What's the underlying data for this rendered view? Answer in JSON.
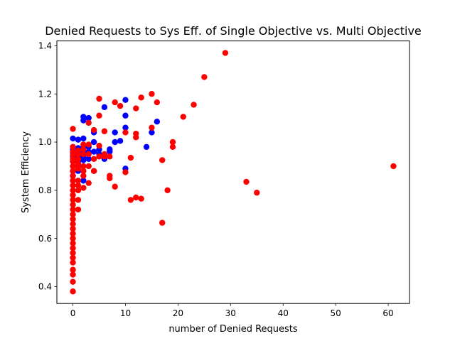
{
  "chart_data": {
    "type": "scatter",
    "title": "Denied Requests to Sys Eff. of Single Objective vs. Multi Objective",
    "xlabel": "number of Denied Requests",
    "ylabel": "System Efficiency",
    "xlim": [
      -3.05,
      64.05
    ],
    "ylim": [
      0.33,
      1.42
    ],
    "xticks": [
      0,
      10,
      20,
      30,
      40,
      50,
      60
    ],
    "yticks": [
      0.4,
      0.6,
      0.8,
      1.0,
      1.2,
      1.4
    ],
    "xtick_labels": [
      "0",
      "10",
      "20",
      "30",
      "40",
      "50",
      "60"
    ],
    "ytick_labels": [
      "0.4",
      "0.6",
      "0.8",
      "1.0",
      "1.2",
      "1.4"
    ],
    "grid": false,
    "legend": "none",
    "series": [
      {
        "color": "#0000ff",
        "points": [
          [
            0,
            1.015
          ],
          [
            0,
            0.98
          ],
          [
            0,
            0.97
          ],
          [
            0,
            0.955
          ],
          [
            0,
            0.94
          ],
          [
            0,
            0.92
          ],
          [
            0,
            0.9
          ],
          [
            0,
            0.88
          ],
          [
            0,
            0.86
          ],
          [
            0,
            0.84
          ],
          [
            1,
            1.01
          ],
          [
            1,
            0.975
          ],
          [
            1,
            0.96
          ],
          [
            1,
            0.94
          ],
          [
            1,
            0.92
          ],
          [
            1,
            0.9
          ],
          [
            1,
            0.88
          ],
          [
            2,
            1.105
          ],
          [
            2,
            1.09
          ],
          [
            2,
            1.015
          ],
          [
            2,
            0.98
          ],
          [
            2,
            0.96
          ],
          [
            2,
            0.94
          ],
          [
            2,
            0.925
          ],
          [
            2,
            0.9
          ],
          [
            2,
            0.84
          ],
          [
            3,
            1.1
          ],
          [
            3,
            0.98
          ],
          [
            3,
            0.96
          ],
          [
            3,
            0.93
          ],
          [
            4,
            1.04
          ],
          [
            4,
            1.0
          ],
          [
            4,
            0.96
          ],
          [
            4,
            0.88
          ],
          [
            5,
            0.97
          ],
          [
            5,
            0.95
          ],
          [
            6,
            1.145
          ],
          [
            6,
            0.93
          ],
          [
            7,
            0.97
          ],
          [
            7,
            0.96
          ],
          [
            8,
            1.04
          ],
          [
            8,
            1.0
          ],
          [
            9,
            1.005
          ],
          [
            10,
            1.175
          ],
          [
            10,
            1.11
          ],
          [
            10,
            1.06
          ],
          [
            10,
            0.89
          ],
          [
            14,
            0.98
          ],
          [
            15,
            1.04
          ],
          [
            16,
            1.085
          ]
        ]
      },
      {
        "color": "#ff0000",
        "points": [
          [
            0,
            1.055
          ],
          [
            0,
            0.98
          ],
          [
            0,
            0.96
          ],
          [
            0,
            0.945
          ],
          [
            0,
            0.93
          ],
          [
            0,
            0.92
          ],
          [
            0,
            0.9
          ],
          [
            0,
            0.88
          ],
          [
            0,
            0.86
          ],
          [
            0,
            0.84
          ],
          [
            0,
            0.82
          ],
          [
            0,
            0.8
          ],
          [
            0,
            0.78
          ],
          [
            0,
            0.76
          ],
          [
            0,
            0.74
          ],
          [
            0,
            0.72
          ],
          [
            0,
            0.7
          ],
          [
            0,
            0.68
          ],
          [
            0,
            0.66
          ],
          [
            0,
            0.64
          ],
          [
            0,
            0.62
          ],
          [
            0,
            0.6
          ],
          [
            0,
            0.58
          ],
          [
            0,
            0.56
          ],
          [
            0,
            0.54
          ],
          [
            0,
            0.52
          ],
          [
            0,
            0.5
          ],
          [
            0,
            0.47
          ],
          [
            0,
            0.45
          ],
          [
            0,
            0.42
          ],
          [
            0,
            0.38
          ],
          [
            1,
            0.965
          ],
          [
            1,
            0.95
          ],
          [
            1,
            0.93
          ],
          [
            1,
            0.91
          ],
          [
            1,
            0.89
          ],
          [
            1,
            0.84
          ],
          [
            1,
            0.82
          ],
          [
            1,
            0.8
          ],
          [
            1,
            0.76
          ],
          [
            1,
            0.72
          ],
          [
            2,
            0.99
          ],
          [
            2,
            0.97
          ],
          [
            2,
            0.95
          ],
          [
            2,
            0.9
          ],
          [
            2,
            0.88
          ],
          [
            2,
            0.86
          ],
          [
            2,
            0.81
          ],
          [
            3,
            1.08
          ],
          [
            3,
            0.99
          ],
          [
            3,
            0.95
          ],
          [
            3,
            0.9
          ],
          [
            3,
            0.83
          ],
          [
            4,
            1.05
          ],
          [
            4,
            0.93
          ],
          [
            4,
            0.88
          ],
          [
            5,
            1.18
          ],
          [
            5,
            1.11
          ],
          [
            5,
            0.985
          ],
          [
            5,
            0.94
          ],
          [
            6,
            1.045
          ],
          [
            6,
            0.95
          ],
          [
            6,
            0.94
          ],
          [
            7,
            0.94
          ],
          [
            7,
            0.86
          ],
          [
            7,
            0.85
          ],
          [
            8,
            1.165
          ],
          [
            8,
            0.815
          ],
          [
            9,
            1.15
          ],
          [
            10,
            1.04
          ],
          [
            10,
            0.875
          ],
          [
            11,
            0.935
          ],
          [
            11,
            0.76
          ],
          [
            12,
            1.14
          ],
          [
            12,
            1.035
          ],
          [
            12,
            1.02
          ],
          [
            12,
            0.77
          ],
          [
            13,
            1.185
          ],
          [
            13,
            0.765
          ],
          [
            15,
            1.2
          ],
          [
            15,
            1.06
          ],
          [
            16,
            1.165
          ],
          [
            17,
            0.925
          ],
          [
            17,
            0.665
          ],
          [
            18,
            0.8
          ],
          [
            19,
            1.0
          ],
          [
            19,
            0.98
          ],
          [
            21,
            1.105
          ],
          [
            23,
            1.155
          ],
          [
            25,
            1.27
          ],
          [
            29,
            1.37
          ],
          [
            33,
            0.835
          ],
          [
            35,
            0.79
          ],
          [
            61,
            0.9
          ]
        ]
      }
    ]
  }
}
